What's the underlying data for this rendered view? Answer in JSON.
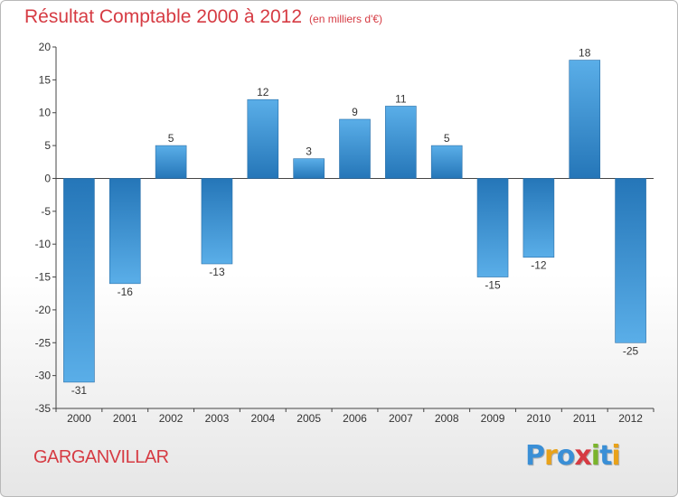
{
  "header": {
    "title": "Résultat Comptable 2000 à 2012",
    "subtitle": "(en milliers d'€)"
  },
  "footer": {
    "commune": "GARGANVILLAR",
    "logo_letters": [
      "P",
      "r",
      "o",
      "x",
      "i",
      "t",
      "i"
    ],
    "logo_colors": [
      "#3a8fd6",
      "#e8a21a",
      "#3a8fd6",
      "#d63b43",
      "#7ab42c",
      "#3a8fd6",
      "#e8a21a"
    ]
  },
  "chart_data": {
    "type": "bar",
    "title": "Résultat Comptable 2000 à 2012",
    "subtitle": "(en milliers d'€)",
    "categories": [
      "2000",
      "2001",
      "2002",
      "2003",
      "2004",
      "2005",
      "2006",
      "2007",
      "2008",
      "2009",
      "2010",
      "2011",
      "2012"
    ],
    "values": [
      -31,
      -16,
      5,
      -13,
      12,
      3,
      9,
      11,
      5,
      -15,
      -12,
      18,
      -25
    ],
    "value_labels": [
      "-31",
      "-16",
      "5",
      "-13",
      "12",
      "3",
      "9",
      "11",
      "5",
      "-15",
      "-12",
      "18",
      "-25"
    ],
    "ylim": [
      -35,
      20
    ],
    "yticks": [
      20,
      15,
      10,
      5,
      0,
      -5,
      -10,
      -15,
      -20,
      -25,
      -30,
      -35
    ],
    "ytick_labels": [
      "20",
      "15",
      "10",
      "5",
      "0",
      "-5",
      "-10",
      "-15",
      "-20",
      "-25",
      "-30",
      "-35"
    ],
    "grid": false,
    "colors": {
      "bar_light": "#5aaee8",
      "bar_dark": "#2a7fc0",
      "axis": "#444444"
    }
  }
}
